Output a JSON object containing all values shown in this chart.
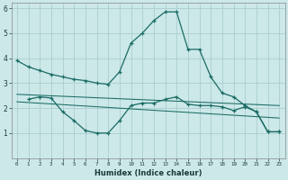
{
  "xlabel": "Humidex (Indice chaleur)",
  "xlim": [
    -0.5,
    23.5
  ],
  "ylim": [
    0,
    6.2
  ],
  "yticks": [
    1,
    2,
    3,
    4,
    5,
    6
  ],
  "xtick_positions": [
    0,
    1,
    2,
    3,
    4,
    5,
    6,
    7,
    8,
    9,
    10,
    11,
    12,
    13,
    14,
    15,
    16,
    17,
    18,
    19,
    20,
    21,
    22,
    23
  ],
  "xtick_labels": [
    "0",
    "1",
    "2",
    "3",
    "4",
    "5",
    "6",
    "7",
    "8",
    "9",
    "10",
    "11",
    "12",
    "13",
    "14",
    "15",
    "16",
    "17",
    "18",
    "19",
    "20",
    "21",
    "22",
    "23"
  ],
  "background_color": "#cce8e8",
  "grid_color": "#aacece",
  "line_color": "#1a6b65",
  "line1_x": [
    0,
    1,
    2,
    3,
    4,
    5,
    6,
    7,
    8,
    9,
    10,
    11,
    12,
    13,
    14,
    15,
    16,
    17,
    18,
    19,
    20,
    21,
    22,
    23
  ],
  "line1_y": [
    3.9,
    3.65,
    3.5,
    3.35,
    3.25,
    3.15,
    3.1,
    3.0,
    2.95,
    3.45,
    4.6,
    5.0,
    5.5,
    5.85,
    5.85,
    4.35,
    4.35,
    3.25,
    2.6,
    2.45,
    2.1,
    1.85,
    1.05,
    1.05
  ],
  "line2_x": [
    1,
    2,
    3,
    4,
    5,
    6,
    7,
    8,
    9,
    10,
    11,
    12,
    13,
    14,
    15,
    16,
    17,
    18,
    19,
    20,
    21,
    22,
    23
  ],
  "line2_y": [
    2.35,
    2.45,
    2.4,
    1.85,
    1.5,
    1.1,
    1.0,
    1.0,
    1.5,
    2.1,
    2.2,
    2.2,
    2.35,
    2.45,
    2.15,
    2.1,
    2.1,
    2.05,
    1.9,
    2.05,
    1.85,
    1.05,
    1.05
  ],
  "line3_x": [
    0,
    23
  ],
  "line3_y": [
    2.55,
    2.1
  ],
  "line4_x": [
    0,
    23
  ],
  "line4_y": [
    2.25,
    1.6
  ]
}
